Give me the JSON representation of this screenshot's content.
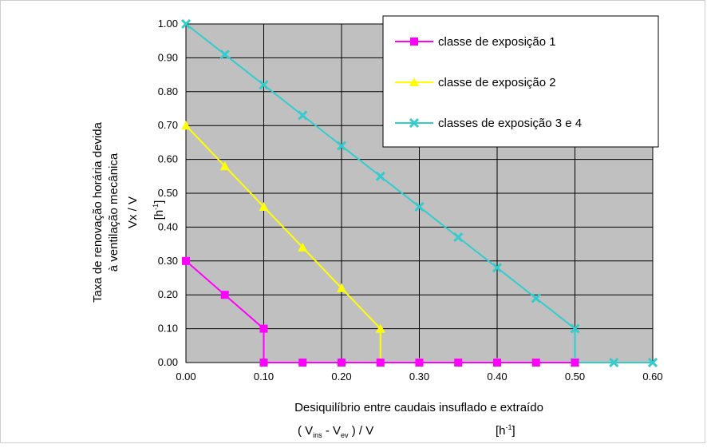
{
  "chart_data": {
    "type": "line",
    "title": "",
    "xlabel": "Desiquilíbrio entre caudais insuflado e extraído",
    "xlabel_formula": {
      "open": "( V",
      "sub1": "ins",
      "minus": " - V",
      "sub2": "ev",
      "close": " ) / V",
      "unit_base": "[h",
      "unit_sup": "-1",
      "unit_close": "]"
    },
    "ylabel_line1": "Taxa de renovação horária devida",
    "ylabel_line2": "à ventilação mecânica",
    "ylabel_line3": "Vx / V",
    "ylabel_unit_base": "[h",
    "ylabel_unit_sup": "-1",
    "ylabel_unit_close": "]",
    "xlim": [
      0,
      0.6
    ],
    "ylim": [
      0,
      1.0
    ],
    "x_ticks": [
      "0.00",
      "0.10",
      "0.20",
      "0.30",
      "0.40",
      "0.50",
      "0.60"
    ],
    "y_ticks": [
      "0.00",
      "0.10",
      "0.20",
      "0.30",
      "0.40",
      "0.50",
      "0.60",
      "0.70",
      "0.80",
      "0.90",
      "1.00"
    ],
    "grid": true,
    "legend_position": "top-right",
    "plot_background": "#c0c0c0",
    "series": [
      {
        "name": "classe de exposição 1",
        "color": "#ff00ff",
        "marker": "square",
        "points": [
          [
            0.0,
            0.3
          ],
          [
            0.05,
            0.2
          ],
          [
            0.1,
            0.1
          ],
          [
            0.1,
            0.0
          ],
          [
            0.15,
            0.0
          ],
          [
            0.2,
            0.0
          ],
          [
            0.25,
            0.0
          ],
          [
            0.3,
            0.0
          ],
          [
            0.35,
            0.0
          ],
          [
            0.4,
            0.0
          ],
          [
            0.45,
            0.0
          ],
          [
            0.5,
            0.0
          ]
        ]
      },
      {
        "name": "classe de exposição 2",
        "color": "#ffff00",
        "marker": "triangle",
        "points": [
          [
            0.0,
            0.7
          ],
          [
            0.05,
            0.58
          ],
          [
            0.1,
            0.46
          ],
          [
            0.15,
            0.34
          ],
          [
            0.2,
            0.22
          ],
          [
            0.25,
            0.1
          ],
          [
            0.25,
            0.0
          ],
          [
            0.3,
            0.0
          ],
          [
            0.35,
            0.0
          ],
          [
            0.4,
            0.0
          ],
          [
            0.45,
            0.0
          ],
          [
            0.5,
            0.0
          ]
        ]
      },
      {
        "name": "classes de exposição 3 e 4",
        "color": "#33cccc",
        "marker": "x",
        "points": [
          [
            0.0,
            1.0
          ],
          [
            0.05,
            0.91
          ],
          [
            0.1,
            0.82
          ],
          [
            0.15,
            0.73
          ],
          [
            0.2,
            0.64
          ],
          [
            0.25,
            0.55
          ],
          [
            0.3,
            0.46
          ],
          [
            0.35,
            0.37
          ],
          [
            0.4,
            0.28
          ],
          [
            0.45,
            0.19
          ],
          [
            0.5,
            0.1
          ],
          [
            0.5,
            0.0
          ],
          [
            0.55,
            0.0
          ],
          [
            0.6,
            0.0
          ]
        ]
      }
    ]
  }
}
